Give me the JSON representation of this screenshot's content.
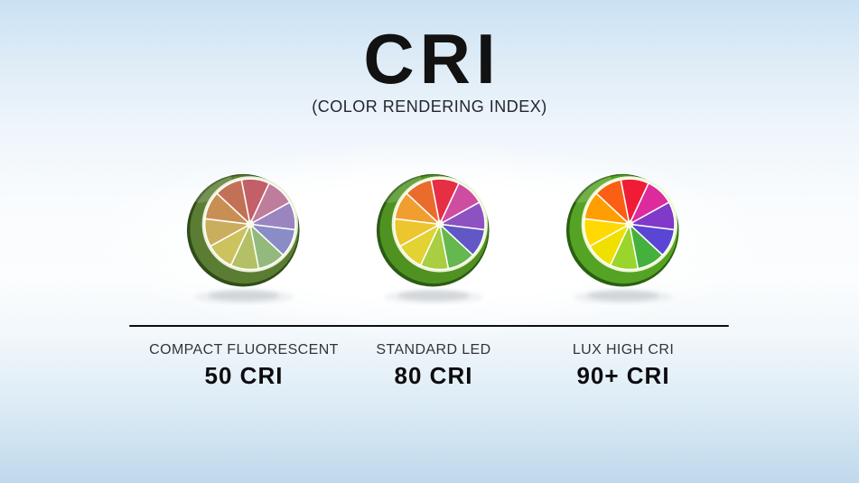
{
  "title": "CRI",
  "subtitle": "(COLOR RENDERING INDEX)",
  "columns": [
    {
      "source_label": "COMPACT FLUORESCENT",
      "cri_value": "50 CRI"
    },
    {
      "source_label": "STANDARD LED",
      "cri_value": "80 CRI"
    },
    {
      "source_label": "LUX HIGH CRI",
      "cri_value": "90+ CRI"
    }
  ],
  "limes": [
    {
      "name": "lime-color-wheel-muted-50cri",
      "rind_outer": "#2f4d18",
      "rind_mid": "#5b7d33",
      "pith": "#eaf0d6",
      "center": "#f6f9ea",
      "segments": [
        "#c25f68",
        "#bf7d9c",
        "#9a85c0",
        "#8a8cc6",
        "#93ba7c",
        "#b4c066",
        "#ccc25e",
        "#cbad5e",
        "#c88f55",
        "#c37156"
      ]
    },
    {
      "name": "lime-color-wheel-standard-80cri",
      "rind_outer": "#2c5a14",
      "rind_mid": "#4f9222",
      "pith": "#ebf4d0",
      "center": "#f7fbe9",
      "segments": [
        "#e62e44",
        "#cf4da0",
        "#8e51c1",
        "#6158c5",
        "#64b84e",
        "#a9ce41",
        "#e3d233",
        "#ecc52f",
        "#f09e2e",
        "#ea6c2c"
      ]
    },
    {
      "name": "lime-color-wheel-vivid-90cri",
      "rind_outer": "#2b5f12",
      "rind_mid": "#55a324",
      "pith": "#edf7d0",
      "center": "#f8fcea",
      "segments": [
        "#f01c36",
        "#dd2b9d",
        "#8039c8",
        "#5b45d4",
        "#44b13c",
        "#9ad52b",
        "#f0e000",
        "#ffd900",
        "#ff9e00",
        "#fb5f13"
      ]
    }
  ],
  "divider_color": "#0e0e0e",
  "background": {
    "top": "#cae2f4",
    "middle": "#fbfdfe",
    "bottom": "#bfd9ec"
  }
}
